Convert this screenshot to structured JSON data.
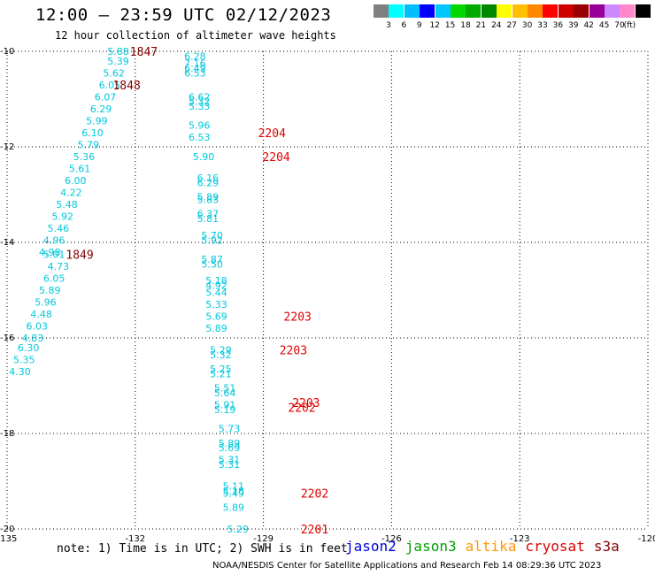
{
  "header": {
    "title": "12:00 – 23:59 UTC 02/12/2023",
    "subtitle": "12 hour collection of altimeter wave heights"
  },
  "color_scale": {
    "colors": [
      "#808080",
      "#00ffff",
      "#00bfff",
      "#0000ff",
      "#00c8ff",
      "#00d800",
      "#00aa00",
      "#008800",
      "#ffff00",
      "#ffc000",
      "#ff8800",
      "#ff0000",
      "#cc0000",
      "#990000",
      "#990099",
      "#cc88ff",
      "#ff88cc",
      "#000000"
    ],
    "labels": [
      "3",
      "6",
      "9",
      "12",
      "15",
      "18",
      "21",
      "24",
      "27",
      "30",
      "33",
      "36",
      "39",
      "42",
      "45",
      "70"
    ],
    "unit": "(ft)"
  },
  "chart_data": {
    "type": "scatter",
    "x_ticks": [
      "-135",
      "-132",
      "-129",
      "-126",
      "-123",
      "-120"
    ],
    "y_ticks": [
      "-10",
      "-12",
      "-14",
      "-16",
      "-18",
      "-20"
    ],
    "xlim": [
      -135,
      -120
    ],
    "ylim": [
      -20,
      -10
    ],
    "grid": true,
    "annotations": [
      {
        "lon": -131.8,
        "lat": -10.0,
        "text": "1847",
        "color": "#800000"
      },
      {
        "lon": -132.2,
        "lat": -10.7,
        "text": "1848",
        "color": "#800000"
      },
      {
        "lon": -133.3,
        "lat": -14.25,
        "text": "1849",
        "color": "#800000"
      },
      {
        "lon": -128.8,
        "lat": -11.7,
        "text": "2204",
        "color": "#e00000"
      },
      {
        "lon": -128.7,
        "lat": -12.2,
        "text": "2204",
        "color": "#e00000"
      },
      {
        "lon": -128.2,
        "lat": -15.55,
        "text": "2203",
        "color": "#e00000"
      },
      {
        "lon": -128.3,
        "lat": -16.25,
        "text": "2203",
        "color": "#e00000"
      },
      {
        "lon": -128.0,
        "lat": -17.35,
        "text": "2203",
        "color": "#e00000"
      },
      {
        "lon": -128.1,
        "lat": -17.45,
        "text": "2202",
        "color": "#e00000"
      },
      {
        "lon": -127.8,
        "lat": -19.25,
        "text": "2202",
        "color": "#e00000"
      },
      {
        "lon": -127.8,
        "lat": -20.0,
        "text": "2201",
        "color": "#e00000"
      }
    ],
    "points": [
      {
        "lon": -132.4,
        "lat": -10.0,
        "v": "5.88"
      },
      {
        "lon": -132.4,
        "lat": -10.2,
        "v": "5.39"
      },
      {
        "lon": -132.5,
        "lat": -10.45,
        "v": "5.62"
      },
      {
        "lon": -132.6,
        "lat": -10.7,
        "v": "6.05"
      },
      {
        "lon": -132.7,
        "lat": -10.95,
        "v": "6.07"
      },
      {
        "lon": -132.8,
        "lat": -11.2,
        "v": "6.29"
      },
      {
        "lon": -132.9,
        "lat": -11.45,
        "v": "5.99"
      },
      {
        "lon": -133.0,
        "lat": -11.7,
        "v": "6.10"
      },
      {
        "lon": -133.1,
        "lat": -11.95,
        "v": "5.79"
      },
      {
        "lon": -133.2,
        "lat": -12.2,
        "v": "5.36"
      },
      {
        "lon": -133.3,
        "lat": -12.45,
        "v": "5.61"
      },
      {
        "lon": -133.4,
        "lat": -12.7,
        "v": "6.00"
      },
      {
        "lon": -133.5,
        "lat": -12.95,
        "v": "4.22"
      },
      {
        "lon": -133.6,
        "lat": -13.2,
        "v": "5.48"
      },
      {
        "lon": -133.7,
        "lat": -13.45,
        "v": "5.92"
      },
      {
        "lon": -133.8,
        "lat": -13.7,
        "v": "5.46"
      },
      {
        "lon": -133.9,
        "lat": -13.95,
        "v": "4.96"
      },
      {
        "lon": -134.0,
        "lat": -14.2,
        "v": "4.98"
      },
      {
        "lon": -133.9,
        "lat": -14.25,
        "v": "5.01"
      },
      {
        "lon": -133.8,
        "lat": -14.5,
        "v": "4.73"
      },
      {
        "lon": -133.9,
        "lat": -14.75,
        "v": "6.05"
      },
      {
        "lon": -134.0,
        "lat": -15.0,
        "v": "5.89"
      },
      {
        "lon": -134.1,
        "lat": -15.25,
        "v": "5.96"
      },
      {
        "lon": -134.2,
        "lat": -15.5,
        "v": "4.48"
      },
      {
        "lon": -134.3,
        "lat": -15.75,
        "v": "6.03"
      },
      {
        "lon": -134.4,
        "lat": -16.0,
        "v": "4.83"
      },
      {
        "lon": -134.5,
        "lat": -16.2,
        "v": "6.30"
      },
      {
        "lon": -134.6,
        "lat": -16.45,
        "v": "5.35"
      },
      {
        "lon": -134.7,
        "lat": -16.7,
        "v": "4.30"
      },
      {
        "lon": -130.6,
        "lat": -10.1,
        "v": "6.28"
      },
      {
        "lon": -130.6,
        "lat": -10.25,
        "v": "7.16"
      },
      {
        "lon": -130.6,
        "lat": -10.35,
        "v": "6.49"
      },
      {
        "lon": -130.6,
        "lat": -10.45,
        "v": "6.53"
      },
      {
        "lon": -130.5,
        "lat": -10.95,
        "v": "6.62"
      },
      {
        "lon": -130.5,
        "lat": -11.05,
        "v": "5.32"
      },
      {
        "lon": -130.5,
        "lat": -11.15,
        "v": "5.33"
      },
      {
        "lon": -130.5,
        "lat": -11.55,
        "v": "5.96"
      },
      {
        "lon": -130.5,
        "lat": -11.8,
        "v": "6.53"
      },
      {
        "lon": -130.4,
        "lat": -12.2,
        "v": "5.90"
      },
      {
        "lon": -130.3,
        "lat": -12.65,
        "v": "6.16"
      },
      {
        "lon": -130.3,
        "lat": -12.75,
        "v": "6.29"
      },
      {
        "lon": -130.3,
        "lat": -13.05,
        "v": "5.89"
      },
      {
        "lon": -130.3,
        "lat": -13.1,
        "v": "5.83"
      },
      {
        "lon": -130.3,
        "lat": -13.4,
        "v": "6.37"
      },
      {
        "lon": -130.3,
        "lat": -13.5,
        "v": "5.81"
      },
      {
        "lon": -130.2,
        "lat": -13.85,
        "v": "5.70"
      },
      {
        "lon": -130.2,
        "lat": -13.95,
        "v": "5.92"
      },
      {
        "lon": -130.2,
        "lat": -14.35,
        "v": "5.87"
      },
      {
        "lon": -130.2,
        "lat": -14.45,
        "v": "5.50"
      },
      {
        "lon": -130.1,
        "lat": -14.8,
        "v": "5.18"
      },
      {
        "lon": -130.1,
        "lat": -14.9,
        "v": "4.92"
      },
      {
        "lon": -130.1,
        "lat": -15.05,
        "v": "5.44"
      },
      {
        "lon": -130.1,
        "lat": -15.3,
        "v": "5.33"
      },
      {
        "lon": -130.1,
        "lat": -15.55,
        "v": "5.69"
      },
      {
        "lon": -130.1,
        "lat": -15.8,
        "v": "5.89"
      },
      {
        "lon": -130.0,
        "lat": -16.25,
        "v": "5.29"
      },
      {
        "lon": -130.0,
        "lat": -16.35,
        "v": "5.32"
      },
      {
        "lon": -130.0,
        "lat": -16.65,
        "v": "5.25"
      },
      {
        "lon": -130.0,
        "lat": -16.75,
        "v": "5.21"
      },
      {
        "lon": -129.9,
        "lat": -17.05,
        "v": "5.51"
      },
      {
        "lon": -129.9,
        "lat": -17.15,
        "v": "5.64"
      },
      {
        "lon": -129.9,
        "lat": -17.4,
        "v": "5.91"
      },
      {
        "lon": -129.9,
        "lat": -17.5,
        "v": "5.19"
      },
      {
        "lon": -129.8,
        "lat": -17.9,
        "v": "5.73"
      },
      {
        "lon": -129.8,
        "lat": -18.2,
        "v": "5.89"
      },
      {
        "lon": -129.8,
        "lat": -18.3,
        "v": "5.69"
      },
      {
        "lon": -129.8,
        "lat": -18.55,
        "v": "5.31"
      },
      {
        "lon": -129.8,
        "lat": -18.65,
        "v": "5.31"
      },
      {
        "lon": -129.7,
        "lat": -19.1,
        "v": "5.11"
      },
      {
        "lon": -129.7,
        "lat": -19.2,
        "v": "5.18"
      },
      {
        "lon": -129.7,
        "lat": -19.25,
        "v": "5.49"
      },
      {
        "lon": -129.7,
        "lat": -19.55,
        "v": "5.89"
      },
      {
        "lon": -129.6,
        "lat": -20.0,
        "v": "5.29"
      }
    ],
    "point_color": "#00c8dc"
  },
  "footer": {
    "note": "note: 1) Time is in UTC; 2) SWH is in feet",
    "satellites": [
      {
        "name": "jason2",
        "color": "#0000dd"
      },
      {
        "name": "jason3",
        "color": "#00a000"
      },
      {
        "name": "altika",
        "color": "#ff9900"
      },
      {
        "name": "cryosat",
        "color": "#dd0000"
      },
      {
        "name": "s3a",
        "color": "#880000"
      }
    ],
    "credit": "NOAA/NESDIS Center for Satellite Applications and Research   Feb 14 08:29:36 UTC 2023"
  }
}
